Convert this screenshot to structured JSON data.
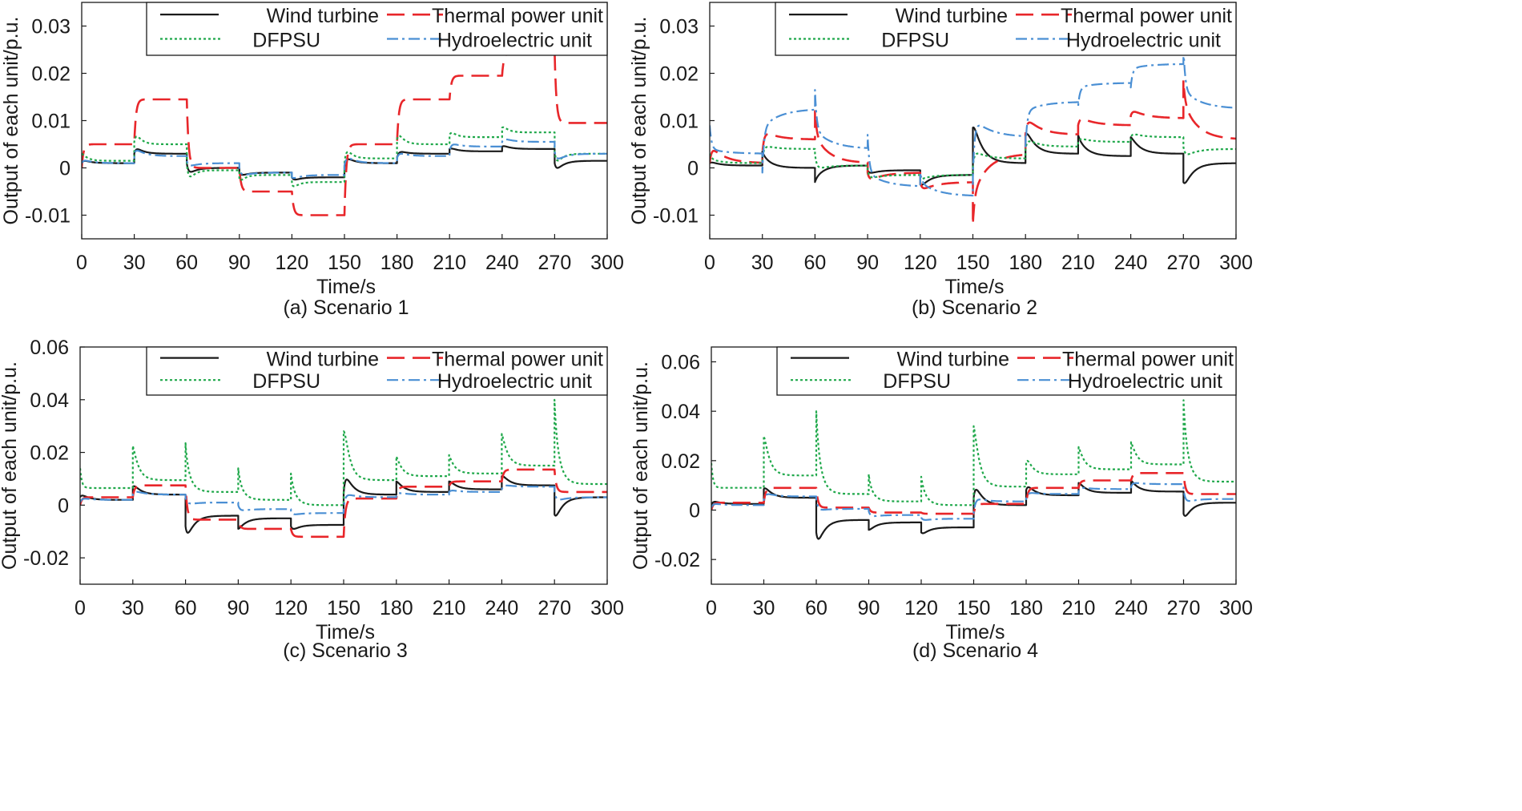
{
  "colors": {
    "wind": "#1a1a1a",
    "thermal": "#e8262a",
    "dfpsu": "#1fa84a",
    "hydro": "#4a8fd4"
  },
  "chart_data": [
    {
      "type": "line",
      "caption": "(a) Scenario 1",
      "xlabel": "Time/s",
      "ylabel": "Output of each unit/p.u.",
      "xlim": [
        0,
        300
      ],
      "ylim": [
        -0.015,
        0.035
      ],
      "xticks": [
        0,
        30,
        60,
        90,
        120,
        150,
        180,
        210,
        240,
        270,
        300
      ],
      "yticks": [
        -0.01,
        0,
        0.01,
        0.02,
        0.03
      ],
      "ytick_labels": [
        "-0.01",
        "0",
        "0.01",
        "0.02",
        "0.03"
      ],
      "legend": [
        "Wind turbine",
        "Thermal power unit",
        "DFPSU",
        "Hydroelectric unit"
      ],
      "legend_position": "top-right",
      "segment_boundaries": [
        0,
        30,
        60,
        90,
        120,
        150,
        180,
        210,
        240,
        270,
        300
      ],
      "series": [
        {
          "name": "Wind turbine",
          "key": "wind",
          "start": 0,
          "levels": [
            0.001,
            0.003,
            0,
            -0.001,
            -0.002,
            0.001,
            0.003,
            0.0035,
            0.004,
            0.0015
          ],
          "spikes": [
            0.001,
            0.002,
            -0.002,
            -0.001,
            -0.001,
            0.002,
            0.001,
            0.001,
            0.001,
            -0.003
          ],
          "tau": 4
        },
        {
          "name": "Thermal power unit",
          "key": "thermal",
          "start": 0,
          "levels": [
            0.005,
            0.0145,
            0,
            -0.005,
            -0.01,
            0.005,
            0.0145,
            0.0195,
            0.0245,
            0.0095
          ],
          "spikes": [
            0,
            0,
            0,
            0,
            0,
            0,
            0,
            0,
            0,
            0
          ],
          "tau": 2
        },
        {
          "name": "DFPSU",
          "key": "dfpsu",
          "start": 0.001,
          "levels": [
            0.0015,
            0.005,
            -0.0005,
            -0.0015,
            -0.003,
            0.002,
            0.005,
            0.0065,
            0.0075,
            0.003
          ],
          "spikes": [
            0.002,
            0.004,
            -0.004,
            -0.002,
            -0.002,
            0.004,
            0.004,
            0.002,
            0.002,
            -0.004
          ],
          "tau": 3
        },
        {
          "name": "Hydroelectric unit",
          "key": "hydro",
          "start": 0,
          "levels": [
            0.001,
            0.0025,
            0.001,
            -0.001,
            -0.0015,
            0.001,
            0.0025,
            0.0045,
            0.0055,
            0.003
          ],
          "spikes": [
            0.001,
            0.002,
            -0.001,
            -0.001,
            -0.001,
            0.002,
            0.001,
            0.001,
            0.001,
            -0.002
          ],
          "tau": 5
        }
      ]
    },
    {
      "type": "line",
      "caption": "(b) Scenario 2",
      "xlabel": "Time/s",
      "ylabel": "Output of each unit/p.u.",
      "xlim": [
        0,
        300
      ],
      "ylim": [
        -0.015,
        0.035
      ],
      "xticks": [
        0,
        30,
        60,
        90,
        120,
        150,
        180,
        210,
        240,
        270,
        300
      ],
      "yticks": [
        -0.01,
        0,
        0.01,
        0.02,
        0.03
      ],
      "ytick_labels": [
        "-0.01",
        "0",
        "0.01",
        "0.02",
        "0.03"
      ],
      "legend": [
        "Wind turbine",
        "Thermal power unit",
        "DFPSU",
        "Hydroelectric unit"
      ],
      "legend_position": "top-right",
      "segment_boundaries": [
        0,
        30,
        60,
        90,
        120,
        150,
        180,
        210,
        240,
        270,
        300
      ],
      "series": [
        {
          "name": "Wind turbine",
          "key": "wind",
          "start": 0,
          "levels": [
            0.0005,
            0,
            0.0005,
            -0.0005,
            -0.0015,
            0.001,
            0.003,
            0.0025,
            0.003,
            0.001
          ],
          "spikes": [
            0.001,
            0.003,
            -0.003,
            -0.001,
            -0.003,
            0.01,
            0.006,
            0.004,
            0.004,
            -0.006
          ],
          "tau": 5
        },
        {
          "name": "Thermal power unit",
          "key": "thermal",
          "start": -0.003,
          "levels": [
            0.001,
            0.006,
            0.001,
            -0.001,
            -0.003,
            0.003,
            0.007,
            0.009,
            0.0105,
            0.006
          ],
          "spikes": [
            0.004,
            0.002,
            0.006,
            -0.002,
            -0.002,
            -0.009,
            0.004,
            0.002,
            0.002,
            0.008
          ],
          "tau": 8
        },
        {
          "name": "DFPSU",
          "key": "dfpsu",
          "start": 0.002,
          "levels": [
            0.001,
            0.004,
            0.0005,
            -0.0015,
            -0.0015,
            0.002,
            0.0045,
            0.0055,
            0.0065,
            0.004
          ],
          "spikes": [
            0.001,
            0.001,
            -0.001,
            -0.001,
            -0.001,
            0.002,
            0.002,
            0.001,
            0.001,
            -0.002
          ],
          "tau": 6
        },
        {
          "name": "Hydroelectric unit",
          "key": "hydro",
          "start": 0.008,
          "levels": [
            0.003,
            0.0125,
            0.004,
            -0.004,
            -0.006,
            0.0065,
            0.014,
            0.018,
            0.022,
            0.0125
          ],
          "spikes": [
            0.001,
            -0.004,
            0.004,
            0.003,
            0.003,
            0.004,
            -0.002,
            -0.001,
            -0.001,
            0.004
          ],
          "tau": 10
        }
      ]
    },
    {
      "type": "line",
      "caption": "(c) Scenario 3",
      "xlabel": "Time/s",
      "ylabel": "Output of each unit/p.u.",
      "xlim": [
        0,
        300
      ],
      "ylim": [
        -0.03,
        0.06
      ],
      "xticks": [
        0,
        30,
        60,
        90,
        120,
        150,
        180,
        210,
        240,
        270,
        300
      ],
      "yticks": [
        -0.02,
        0,
        0.02,
        0.04,
        0.06
      ],
      "ytick_labels": [
        "-0.02",
        "0",
        "0.02",
        "0.04",
        "0.06"
      ],
      "legend": [
        "Wind turbine",
        "Thermal power unit",
        "DFPSU",
        "Hydroelectric unit"
      ],
      "legend_position": "top-right",
      "segment_boundaries": [
        0,
        30,
        60,
        90,
        120,
        150,
        180,
        210,
        240,
        270,
        300
      ],
      "series": [
        {
          "name": "Wind turbine",
          "key": "wind",
          "start": 0,
          "levels": [
            0.002,
            0.004,
            -0.004,
            -0.005,
            -0.0075,
            0.004,
            0.005,
            0.006,
            0.0075,
            0.003
          ],
          "spikes": [
            0.003,
            0.005,
            -0.012,
            -0.005,
            -0.003,
            0.012,
            0.005,
            0.004,
            0.005,
            -0.011
          ],
          "tau": 4
        },
        {
          "name": "Thermal power unit",
          "key": "thermal",
          "start": 0,
          "levels": [
            0.003,
            0.0075,
            -0.0055,
            -0.009,
            -0.012,
            0.0025,
            0.007,
            0.009,
            0.0135,
            0.005
          ],
          "spikes": [
            0,
            0,
            0,
            0,
            0,
            0,
            0,
            0,
            0,
            0
          ],
          "tau": 2
        },
        {
          "name": "DFPSU",
          "key": "dfpsu",
          "start": 0.014,
          "levels": [
            0.0065,
            0.0095,
            0.005,
            0.002,
            0,
            0.0095,
            0.011,
            0.012,
            0.015,
            0.008
          ],
          "spikes": [
            0,
            0.016,
            0.014,
            0.009,
            0.01,
            0.028,
            0.009,
            0.008,
            0.015,
            0.025
          ],
          "tau": 3
        },
        {
          "name": "Hydroelectric unit",
          "key": "hydro",
          "start": 0,
          "levels": [
            0.002,
            0.004,
            0.001,
            -0.0015,
            -0.003,
            0.003,
            0.004,
            0.005,
            0.007,
            0.003
          ],
          "spikes": [
            0.001,
            0.002,
            -0.001,
            -0.001,
            -0.001,
            0.002,
            0.001,
            0.001,
            0.001,
            -0.002
          ],
          "tau": 5
        }
      ]
    },
    {
      "type": "line",
      "caption": "(d) Scenario 4",
      "xlabel": "Time/s",
      "ylabel": "Output of each unit/p.u.",
      "xlim": [
        0,
        300
      ],
      "ylim": [
        -0.03,
        0.066
      ],
      "xticks": [
        0,
        30,
        60,
        90,
        120,
        150,
        180,
        210,
        240,
        270,
        300
      ],
      "yticks": [
        -0.02,
        0,
        0.02,
        0.04,
        0.06
      ],
      "ytick_labels": [
        "-0.02",
        "0",
        "0.02",
        "0.04",
        "0.06"
      ],
      "legend": [
        "Wind turbine",
        "Thermal power unit",
        "DFPSU",
        "Hydroelectric unit"
      ],
      "legend_position": "top-right",
      "segment_boundaries": [
        0,
        30,
        60,
        90,
        120,
        150,
        180,
        210,
        240,
        270,
        300
      ],
      "series": [
        {
          "name": "Wind turbine",
          "key": "wind",
          "start": 0,
          "levels": [
            0.0025,
            0.005,
            -0.004,
            -0.005,
            -0.007,
            0.002,
            0.006,
            0.007,
            0.0075,
            0.003
          ],
          "spikes": [
            0.002,
            0.006,
            -0.014,
            -0.004,
            -0.004,
            0.012,
            0.006,
            0.005,
            0.005,
            -0.009
          ],
          "tau": 4
        },
        {
          "name": "Thermal power unit",
          "key": "thermal",
          "start": 0,
          "levels": [
            0.003,
            0.009,
            0.001,
            -0.001,
            -0.0015,
            0.0025,
            0.009,
            0.012,
            0.015,
            0.0065
          ],
          "spikes": [
            0,
            0,
            0,
            0,
            0,
            0,
            0,
            0,
            0,
            0
          ],
          "tau": 2
        },
        {
          "name": "DFPSU",
          "key": "dfpsu",
          "start": 0.019,
          "levels": [
            0.009,
            0.014,
            0.0065,
            0.0035,
            0.002,
            0.0095,
            0.0145,
            0.0165,
            0.0185,
            0.0115
          ],
          "spikes": [
            0,
            0.021,
            0.026,
            0.008,
            0.01,
            0.032,
            0.01,
            0.011,
            0.011,
            0.026
          ],
          "tau": 3
        },
        {
          "name": "Hydroelectric unit",
          "key": "hydro",
          "start": 0,
          "levels": [
            0.002,
            0.0055,
            0.0005,
            -0.002,
            -0.0035,
            0.0035,
            0.0065,
            0.0085,
            0.0105,
            0.0045
          ],
          "spikes": [
            0.001,
            0.002,
            -0.001,
            -0.001,
            -0.001,
            0.002,
            0.001,
            0.001,
            0.001,
            -0.002
          ],
          "tau": 5
        }
      ]
    }
  ]
}
